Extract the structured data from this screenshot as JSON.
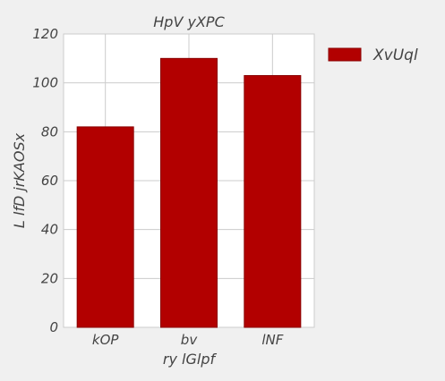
{
  "chart_data": {
    "type": "bar",
    "title": "HpV yXPC",
    "xlabel": "ry lGlpf",
    "ylabel": "L lfD jrKAOSx",
    "categories": [
      "kOP",
      "bv",
      "lNF"
    ],
    "series": [
      {
        "name": "XvUql",
        "values": [
          82,
          110,
          103
        ],
        "color": "#b20000"
      }
    ],
    "ylim": [
      0,
      120
    ],
    "yticks": [
      0,
      20,
      40,
      60,
      80,
      100,
      120
    ],
    "grid": true,
    "legend_position": "top-right, outside plot"
  },
  "colors": {
    "background": "#f0f0f0",
    "plot_background": "#ffffff",
    "grid": "#cccccc",
    "bar": "#b20000",
    "bar_edge": "#8a0000",
    "text": "#444444"
  }
}
